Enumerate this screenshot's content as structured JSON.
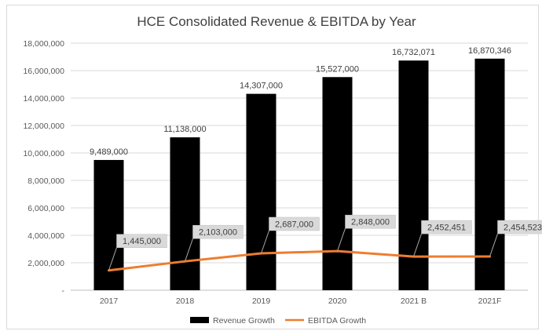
{
  "chart_data": {
    "type": "bar",
    "title": "HCE Consolidated Revenue & EBITDA by Year",
    "categories": [
      "2017",
      "2018",
      "2019",
      "2020",
      "2021 B",
      "2021F"
    ],
    "series": [
      {
        "name": "Revenue Growth",
        "type": "bar",
        "color": "#000000",
        "values": [
          9489000,
          11138000,
          14307000,
          15527000,
          16732071,
          16870346
        ],
        "labels": [
          "9,489,000",
          "11,138,000",
          "14,307,000",
          "15,527,000",
          "16,732,071",
          "16,870,346"
        ]
      },
      {
        "name": "EBITDA Growth",
        "type": "line",
        "color": "#ed7d31",
        "values": [
          1445000,
          2103000,
          2687000,
          2848000,
          2452451,
          2454523
        ],
        "labels": [
          "1,445,000",
          "2,103,000",
          "2,687,000",
          "2,848,000",
          "2,452,451",
          "2,454,523"
        ]
      }
    ],
    "ylim": [
      0,
      18000000
    ],
    "yticks": [
      0,
      2000000,
      4000000,
      6000000,
      8000000,
      10000000,
      12000000,
      14000000,
      16000000,
      18000000
    ],
    "ytick_labels": [
      "-",
      "2,000,000",
      "4,000,000",
      "6,000,000",
      "8,000,000",
      "10,000,000",
      "12,000,000",
      "14,000,000",
      "16,000,000",
      "18,000,000"
    ],
    "grid": true,
    "legend": "bottom",
    "colors": {
      "gridline": "#d9d9d9",
      "axis": "#bfbfbf",
      "callout_fill": "#d9d9d9"
    }
  }
}
